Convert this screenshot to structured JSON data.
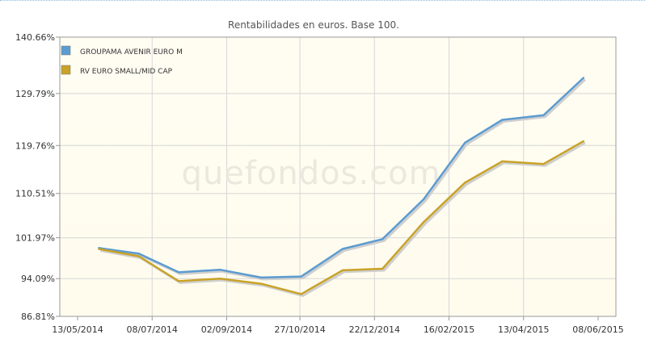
{
  "chart_data": {
    "type": "line",
    "title": "Rentabilidades en euros. Base 100.",
    "xlabel": "",
    "ylabel": "",
    "watermark": "quefondos.com",
    "x_ticks": [
      "13/05/2014",
      "08/07/2014",
      "02/09/2014",
      "27/10/2014",
      "22/12/2014",
      "16/02/2015",
      "13/04/2015",
      "08/06/2015"
    ],
    "y_ticks": [
      "140.66%",
      "129.79%",
      "119.76%",
      "110.51%",
      "101.97%",
      "94.09%",
      "86.81%"
    ],
    "y_tick_values": [
      140.66,
      129.79,
      119.76,
      110.51,
      101.97,
      94.09,
      86.81
    ],
    "ylim": [
      86.81,
      140.66
    ],
    "grid": true,
    "legend_position": "top-left",
    "x": [
      "2014-05-29",
      "2014-06-28",
      "2014-07-28",
      "2014-08-28",
      "2014-09-28",
      "2014-10-28",
      "2014-11-28",
      "2014-12-28",
      "2015-01-28",
      "2015-02-28",
      "2015-03-28",
      "2015-04-28",
      "2015-05-28"
    ],
    "series": [
      {
        "name": "GROUPAMA AVENIR EURO M",
        "color": "#5b9bd0",
        "values": [
          100.0,
          98.9,
          95.3,
          95.8,
          94.3,
          94.5,
          99.8,
          101.7,
          109.4,
          120.3,
          124.7,
          125.6,
          132.8
        ]
      },
      {
        "name": "RV EURO SMALL/MID CAP",
        "color": "#c9a227",
        "values": [
          99.8,
          98.4,
          93.6,
          94.1,
          93.1,
          91.1,
          95.7,
          96.0,
          105.0,
          112.6,
          116.7,
          116.2,
          120.6
        ]
      }
    ]
  }
}
